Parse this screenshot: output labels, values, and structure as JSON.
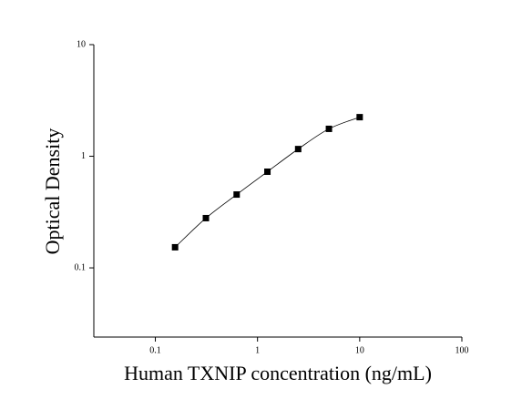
{
  "chart_data": {
    "type": "scatter",
    "x_label": "Human TXNIP concentration (ng/mL)",
    "y_label": "Optical Density",
    "xscale": "log",
    "yscale": "log",
    "xlim": [
      0.025,
      100
    ],
    "ylim": [
      0.024,
      10
    ],
    "xticks": [
      0.1,
      1,
      10,
      100
    ],
    "yticks": [
      0.1,
      1,
      10
    ],
    "series": [
      {
        "color": "#000000",
        "x": [
          0.156,
          0.3125,
          0.625,
          1.25,
          2.5,
          5,
          10
        ],
        "values": [
          0.153,
          0.279,
          0.454,
          0.727,
          1.16,
          1.76,
          2.24
        ]
      }
    ],
    "fit_line": true
  }
}
